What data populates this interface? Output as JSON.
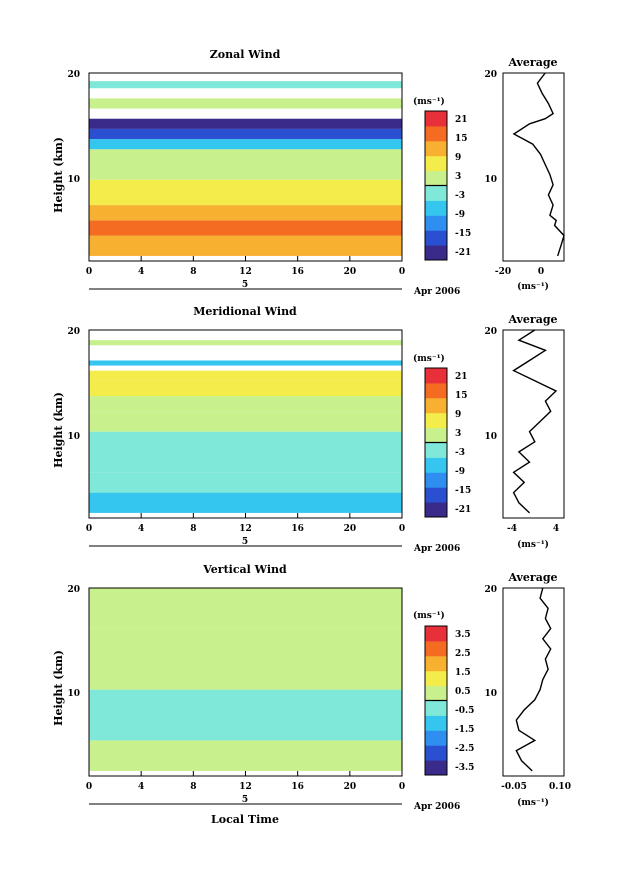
{
  "colors": {
    "scale": [
      "#3a2a8a",
      "#2a4fd0",
      "#2f8ff0",
      "#35c6f0",
      "#7fe8d8",
      "#c8f08c",
      "#f3ec4a",
      "#f7b030",
      "#f36c22",
      "#e8303a"
    ]
  },
  "chart_data": [
    {
      "type": "heatmap",
      "title": "Zonal Wind",
      "ylabel": "Height (km)",
      "y_ticks": [
        "20",
        "10"
      ],
      "x_ticks": [
        "0",
        "4",
        "8",
        "12",
        "16",
        "20",
        "0"
      ],
      "date_tick": "5",
      "date_label": "Apr 2006",
      "xlim": [
        0,
        24
      ],
      "ylim": [
        1.5,
        20
      ],
      "colorbar": {
        "unit": "(ms⁻¹)",
        "ticks": [
          "21",
          "15",
          "9",
          "3",
          "-3",
          "-9",
          "-15",
          "-21"
        ],
        "range": [
          -24,
          24
        ]
      },
      "bands": [
        {
          "y": [
            2,
            4
          ],
          "value": 10
        },
        {
          "y": [
            4,
            5.5
          ],
          "value": 18
        },
        {
          "y": [
            5.5,
            7
          ],
          "value": 12
        },
        {
          "y": [
            7,
            9.5
          ],
          "value": 6
        },
        {
          "y": [
            9.5,
            11
          ],
          "value": 3
        },
        {
          "y": [
            11,
            12.5
          ],
          "value": 0
        },
        {
          "y": [
            12.5,
            13.5
          ],
          "value": -6
        },
        {
          "y": [
            13.5,
            14.5
          ],
          "value": -15
        },
        {
          "y": [
            14.5,
            15.5
          ],
          "value": -21
        },
        {
          "y": [
            16.5,
            17.5
          ],
          "value": 0
        },
        {
          "y": [
            18.5,
            19.2
          ],
          "value": -3
        }
      ],
      "average": {
        "title": "Average",
        "x_ticks": [
          "-20",
          "0"
        ],
        "xlim": [
          -27,
          12
        ],
        "unit": "(ms⁻¹)",
        "height": [
          2,
          3,
          4,
          5,
          5.5,
          6,
          7,
          8,
          9,
          10,
          11,
          12,
          13,
          14,
          15,
          15.5,
          16,
          17,
          18,
          19,
          20
        ],
        "value": [
          8,
          10,
          12,
          6,
          7,
          3,
          5,
          2,
          5,
          3,
          0,
          -3,
          -8,
          -20,
          -10,
          0,
          5,
          2,
          -2,
          -5,
          0
        ]
      }
    },
    {
      "type": "heatmap",
      "title": "Meridional Wind",
      "ylabel": "Height (km)",
      "y_ticks": [
        "20",
        "10"
      ],
      "x_ticks": [
        "0",
        "4",
        "8",
        "12",
        "16",
        "20",
        "0"
      ],
      "date_tick": "5",
      "date_label": "Apr 2006",
      "xlim": [
        0,
        24
      ],
      "ylim": [
        1.5,
        20
      ],
      "colorbar": {
        "unit": "(ms⁻¹)",
        "ticks": [
          "21",
          "15",
          "9",
          "3",
          "-3",
          "-9",
          "-15",
          "-21"
        ],
        "range": [
          -24,
          24
        ]
      },
      "bands": [
        {
          "y": [
            2,
            4
          ],
          "value": -6
        },
        {
          "y": [
            4,
            6
          ],
          "value": -1
        },
        {
          "y": [
            6,
            8
          ],
          "value": -4
        },
        {
          "y": [
            8,
            10
          ],
          "value": -2
        },
        {
          "y": [
            10,
            12
          ],
          "value": 3
        },
        {
          "y": [
            12,
            13.5
          ],
          "value": 1
        },
        {
          "y": [
            13.5,
            15
          ],
          "value": 6
        },
        {
          "y": [
            15,
            16
          ],
          "value": 9
        },
        {
          "y": [
            16.5,
            17
          ],
          "value": -6
        },
        {
          "y": [
            18.5,
            19
          ],
          "value": 0
        }
      ],
      "average": {
        "title": "Average",
        "x_ticks": [
          "-4",
          "4"
        ],
        "xlim": [
          -6,
          5.5
        ],
        "unit": "(ms⁻¹)",
        "height": [
          2,
          3,
          4,
          5,
          6,
          7,
          8,
          9,
          10,
          11,
          12,
          13,
          14,
          15,
          16,
          17,
          18,
          19,
          20
        ],
        "value": [
          -1,
          -3,
          -4,
          -2,
          -4,
          -1,
          -3,
          0,
          -1,
          1,
          3,
          2,
          4,
          0,
          -4,
          -1,
          2,
          -3,
          0
        ]
      }
    },
    {
      "type": "heatmap",
      "title": "Vertical Wind",
      "ylabel": "Height (km)",
      "xlabel": "Local Time",
      "y_ticks": [
        "20",
        "10"
      ],
      "x_ticks": [
        "0",
        "4",
        "8",
        "12",
        "16",
        "20",
        "0"
      ],
      "date_tick": "5",
      "date_label": "Apr 2006",
      "xlim": [
        0,
        24
      ],
      "ylim": [
        1.5,
        20
      ],
      "colorbar": {
        "unit": "(ms⁻¹)",
        "ticks": [
          "3.5",
          "2.5",
          "1.5",
          "0.5",
          "-0.5",
          "-1.5",
          "-2.5",
          "-3.5"
        ],
        "range": [
          -4,
          4
        ]
      },
      "bands": [
        {
          "y": [
            2,
            5
          ],
          "value": 0
        },
        {
          "y": [
            5,
            8
          ],
          "value": -0.3
        },
        {
          "y": [
            8,
            10
          ],
          "value": -0.2
        },
        {
          "y": [
            10,
            14
          ],
          "value": 0.2
        },
        {
          "y": [
            14,
            16
          ],
          "value": 0.4
        },
        {
          "y": [
            16,
            20
          ],
          "value": 0.3
        }
      ],
      "average": {
        "title": "Average",
        "x_ticks": [
          "-0.05",
          "0.10"
        ],
        "xlim": [
          -0.09,
          0.14
        ],
        "unit": "(ms⁻¹)",
        "height": [
          2,
          3,
          4,
          5,
          6,
          7,
          8,
          9,
          10,
          11,
          12,
          13,
          14,
          15,
          16,
          17,
          18,
          19,
          20
        ],
        "value": [
          0.02,
          -0.02,
          -0.04,
          0.03,
          -0.03,
          -0.04,
          -0.01,
          0.03,
          0.05,
          0.06,
          0.08,
          0.07,
          0.09,
          0.06,
          0.09,
          0.07,
          0.08,
          0.05,
          0.06
        ]
      }
    }
  ]
}
